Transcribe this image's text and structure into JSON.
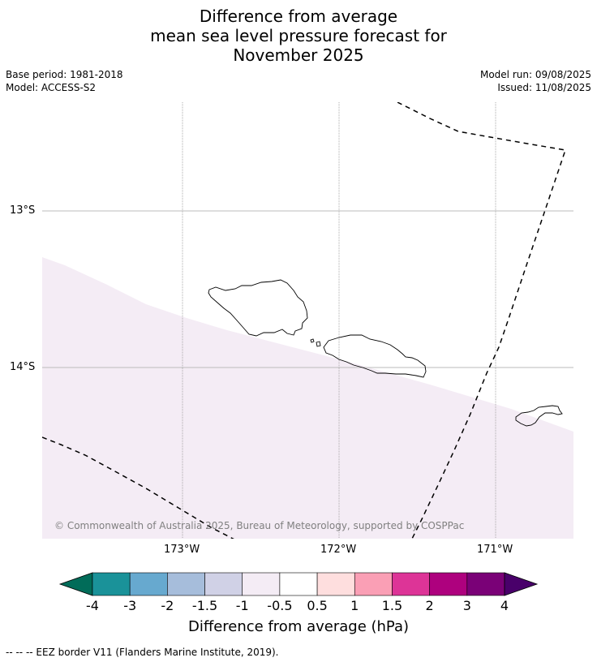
{
  "title": {
    "line1": "Difference from average",
    "line2": "mean sea level pressure forecast for",
    "line3": "November 2025"
  },
  "meta": {
    "base_period": "Base period: 1981-2018",
    "model": "Model: ACCESS-S2",
    "model_run": "Model run: 09/08/2025",
    "issued": "Issued: 11/08/2025"
  },
  "map": {
    "lat_labels": [
      "13°S",
      "14°S"
    ],
    "lon_labels": [
      "173°W",
      "172°W",
      "171°W"
    ],
    "copyright": "© Commonwealth of Australia 2025, Bureau of Meteorology, supported by COSPPac",
    "shaded_class_color": "#f4ecf5",
    "coast_color": "#000000",
    "grid_color": "#aaaaaa"
  },
  "colorbar": {
    "labels": [
      "-4",
      "-3",
      "-2",
      "-1.5",
      "-1",
      "-0.5",
      "0.5",
      "1",
      "1.5",
      "2",
      "3",
      "4"
    ],
    "colors": [
      "#1a9299",
      "#67a9cf",
      "#a6bddb",
      "#d0d1e6",
      "#f4ecf5",
      "#ffffff",
      "#fedede",
      "#fa9fb5",
      "#dd3497",
      "#ae017e",
      "#7a0177"
    ],
    "low_extend_color": "#016c59",
    "high_extend_color": "#49006a",
    "title": "Difference from average (hPa)"
  },
  "footnote": "--  --  -- EEZ border V11 (Flanders Marine Institute, 2019)."
}
